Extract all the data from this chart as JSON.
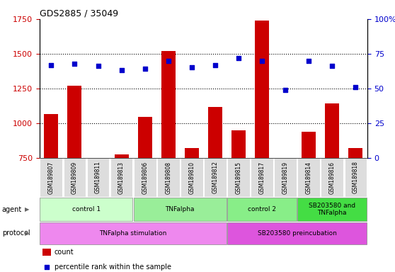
{
  "title": "GDS2885 / 35049",
  "samples": [
    "GSM189807",
    "GSM189809",
    "GSM189811",
    "GSM189813",
    "GSM189806",
    "GSM189808",
    "GSM189810",
    "GSM189812",
    "GSM189815",
    "GSM189817",
    "GSM189819",
    "GSM189814",
    "GSM189816",
    "GSM189818"
  ],
  "counts": [
    1065,
    1270,
    750,
    775,
    1045,
    1520,
    820,
    1115,
    950,
    1740,
    750,
    935,
    1140,
    820
  ],
  "percentiles": [
    67,
    68,
    66,
    63,
    64,
    70,
    65,
    67,
    72,
    70,
    49,
    70,
    66,
    51
  ],
  "bar_color": "#cc0000",
  "scatter_color": "#0000cc",
  "ylim_left": [
    750,
    1750
  ],
  "ylim_right": [
    0,
    100
  ],
  "yticks_left": [
    750,
    1000,
    1250,
    1500,
    1750
  ],
  "yticks_right": [
    0,
    25,
    50,
    75,
    100
  ],
  "ytick_labels_right": [
    "0",
    "25",
    "50",
    "75",
    "100%"
  ],
  "agent_groups": [
    {
      "label": "control 1",
      "start": 0,
      "end": 3,
      "color": "#ccffcc"
    },
    {
      "label": "TNFalpha",
      "start": 4,
      "end": 7,
      "color": "#99ee99"
    },
    {
      "label": "control 2",
      "start": 8,
      "end": 10,
      "color": "#88ee88"
    },
    {
      "label": "SB203580 and\nTNFalpha",
      "start": 11,
      "end": 13,
      "color": "#44dd44"
    }
  ],
  "protocol_groups": [
    {
      "label": "TNFalpha stimulation",
      "start": 0,
      "end": 7,
      "color": "#ee88ee"
    },
    {
      "label": "SB203580 preincubation",
      "start": 8,
      "end": 13,
      "color": "#dd55dd"
    }
  ],
  "agent_label": "agent",
  "protocol_label": "protocol",
  "legend_count_color": "#cc0000",
  "legend_scatter_color": "#0000cc",
  "background_color": "#ffffff",
  "xticklabel_bg": "#dddddd"
}
